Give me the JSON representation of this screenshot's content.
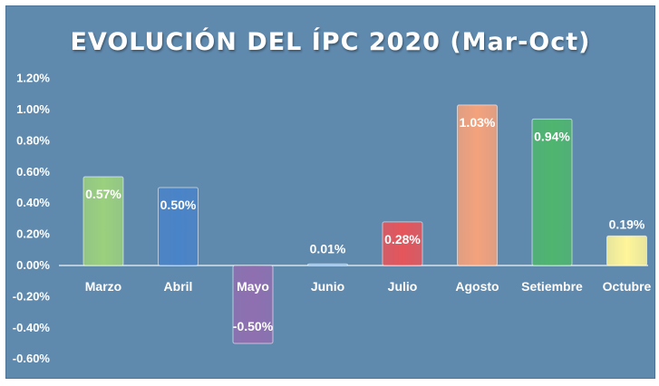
{
  "chart_data": {
    "type": "bar",
    "title": "EVOLUCIÓN  DEL ÍPC 2020 (Mar-Oct)",
    "categories": [
      "Marzo",
      "Abril",
      "Mayo",
      "Junio",
      "Julio",
      "Agosto",
      "Setiembre",
      "Octubre"
    ],
    "values": [
      0.57,
      0.5,
      -0.5,
      0.01,
      0.28,
      1.03,
      0.94,
      0.19
    ],
    "data_labels": [
      "0.57%",
      "0.50%",
      "-0.50%",
      "0.01%",
      "0.28%",
      "1.03%",
      "0.94%",
      "0.19%"
    ],
    "bar_colors": [
      "#9bd07e",
      "#4a84c8",
      "#8f6fb0",
      "#7fb0de",
      "#e5555b",
      "#f4a27c",
      "#4fb56f",
      "#fff59a"
    ],
    "y_ticks": [
      1.2,
      1.0,
      0.8,
      0.6,
      0.4,
      0.2,
      0.0,
      -0.2,
      -0.4,
      -0.6
    ],
    "y_tick_labels": [
      "1.20%",
      "1.00%",
      "0.80%",
      "0.60%",
      "0.40%",
      "0.20%",
      "0.00%",
      "-0.20%",
      "-0.40%",
      "-0.60%"
    ],
    "ylim": [
      -0.6,
      1.2
    ],
    "grid": false,
    "legend": "none",
    "background_color": "#5f89ad",
    "text_color": "#ffffff"
  }
}
